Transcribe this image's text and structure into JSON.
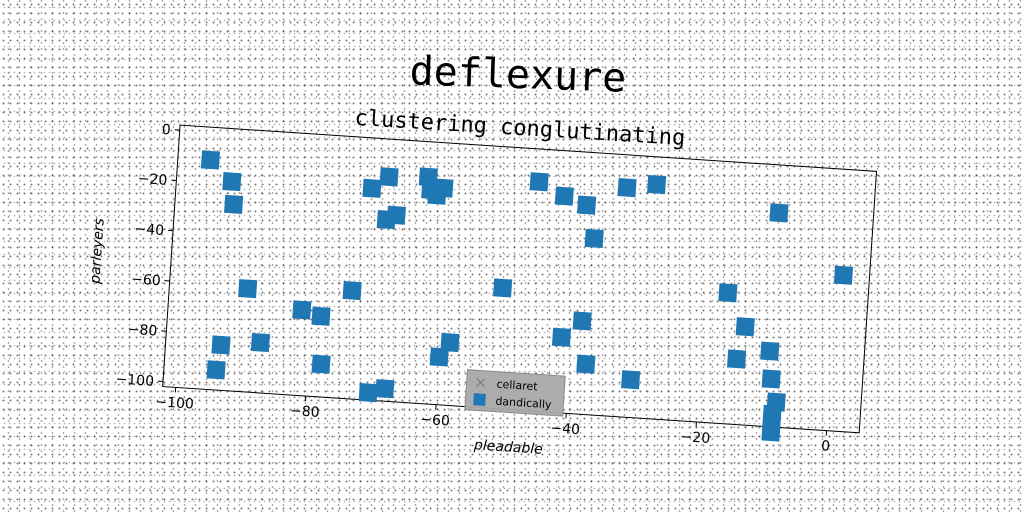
{
  "chart_data": {
    "type": "scatter",
    "title": "deflexure",
    "subtitle": "clustering conglutinating",
    "xlabel": "pleadable",
    "ylabel": "parleyers",
    "xlim": [
      -102,
      5
    ],
    "ylim": [
      -102,
      2
    ],
    "xticks": [
      -100,
      -80,
      -60,
      -40,
      -20,
      0
    ],
    "yticks": [
      0,
      -20,
      -40,
      -60,
      -80,
      -100
    ],
    "xtick_labels": [
      "−100",
      "−80",
      "−60",
      "−40",
      "−20",
      "0"
    ],
    "ytick_labels": [
      "0",
      "−20",
      "−40",
      "−60",
      "−80",
      "−100"
    ],
    "grid": false,
    "legend_position": "bottom-center",
    "series": [
      {
        "name": "cellaret",
        "marker": "x",
        "color": "#7f7f7f",
        "points": []
      },
      {
        "name": "dandically",
        "marker": "square",
        "color": "#1f77b4",
        "points": [
          [
            -97,
            -11
          ],
          [
            -93.5,
            -19
          ],
          [
            -93,
            -28
          ],
          [
            -90,
            -61
          ],
          [
            -93.5,
            -84
          ],
          [
            -94,
            -94
          ],
          [
            -87.5,
            -82
          ],
          [
            -81.5,
            -68
          ],
          [
            -78.5,
            -70
          ],
          [
            -78,
            -89
          ],
          [
            -74,
            -59
          ],
          [
            -72,
            -18
          ],
          [
            -69.5,
            -13
          ],
          [
            -69.5,
            -30
          ],
          [
            -68,
            -28
          ],
          [
            -70.5,
            -99
          ],
          [
            -68,
            -97
          ],
          [
            -63.5,
            -12
          ],
          [
            -63,
            -17
          ],
          [
            -62,
            -19
          ],
          [
            -61,
            -16
          ],
          [
            -60,
            -83
          ],
          [
            -58.5,
            -77
          ],
          [
            -51,
            -54
          ],
          [
            -46.5,
            -11
          ],
          [
            -42.5,
            -16
          ],
          [
            -39,
            -19
          ],
          [
            -41.5,
            -72
          ],
          [
            -38.5,
            -65
          ],
          [
            -37.5,
            -82
          ],
          [
            -37.5,
            -32
          ],
          [
            -33,
            -11
          ],
          [
            -28.5,
            -9
          ],
          [
            -30.5,
            -87
          ],
          [
            -16.5,
            -50
          ],
          [
            -13.5,
            -63
          ],
          [
            -14.5,
            -76
          ],
          [
            -9.5,
            -17
          ],
          [
            -9.5,
            -72
          ],
          [
            -9,
            -83
          ],
          [
            -8,
            -92
          ],
          [
            -8.5,
            -97
          ],
          [
            -8.5,
            -104
          ],
          [
            1,
            -40
          ]
        ]
      }
    ]
  }
}
